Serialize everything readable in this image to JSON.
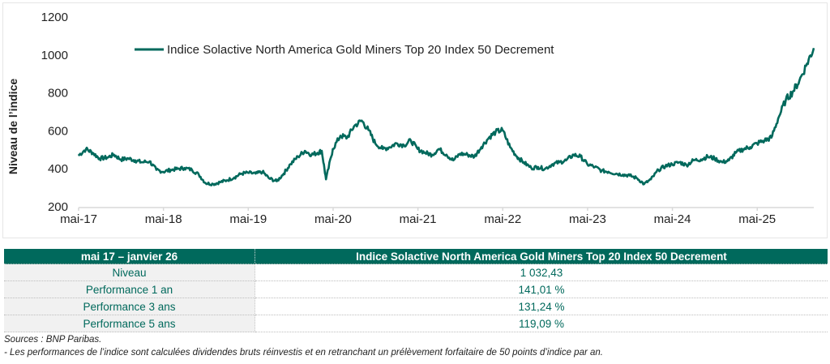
{
  "chart_data": {
    "type": "line",
    "title": "",
    "xlabel": "",
    "ylabel": "Niveau de l’indice",
    "ylim": [
      200,
      1200
    ],
    "yticks": [
      200,
      400,
      600,
      800,
      1000,
      1200
    ],
    "xlim": [
      "2017-05",
      "2026-01"
    ],
    "xticks": [
      "mai-17",
      "mai-18",
      "mai-19",
      "mai-20",
      "mai-21",
      "mai-22",
      "mai-23",
      "mai-24",
      "mai-25"
    ],
    "grid": false,
    "legend": {
      "position": "top-center",
      "entries": [
        "Indice Solactive North America Gold Miners Top 20 Index 50 Decrement"
      ]
    },
    "series_color": "#00695c",
    "series": [
      {
        "name": "Indice Solactive North America Gold Miners Top 20 Index 50 Decrement",
        "x_years": [
          2017.33,
          2017.42,
          2017.5,
          2017.58,
          2017.67,
          2017.75,
          2017.83,
          2017.92,
          2018.0,
          2018.08,
          2018.17,
          2018.25,
          2018.33,
          2018.42,
          2018.5,
          2018.58,
          2018.67,
          2018.75,
          2018.83,
          2018.92,
          2019.0,
          2019.08,
          2019.17,
          2019.25,
          2019.33,
          2019.42,
          2019.5,
          2019.58,
          2019.67,
          2019.75,
          2019.83,
          2019.92,
          2020.0,
          2020.08,
          2020.15,
          2020.2,
          2020.25,
          2020.33,
          2020.42,
          2020.5,
          2020.58,
          2020.67,
          2020.75,
          2020.83,
          2020.92,
          2021.0,
          2021.08,
          2021.17,
          2021.25,
          2021.33,
          2021.42,
          2021.5,
          2021.58,
          2021.67,
          2021.75,
          2021.83,
          2021.92,
          2022.0,
          2022.08,
          2022.17,
          2022.25,
          2022.33,
          2022.42,
          2022.5,
          2022.58,
          2022.67,
          2022.75,
          2022.83,
          2022.92,
          2023.0,
          2023.08,
          2023.17,
          2023.25,
          2023.33,
          2023.42,
          2023.5,
          2023.58,
          2023.67,
          2023.75,
          2023.83,
          2023.92,
          2024.0,
          2024.08,
          2024.17,
          2024.25,
          2024.33,
          2024.42,
          2024.5,
          2024.58,
          2024.67,
          2024.75,
          2024.83,
          2024.92,
          2025.0,
          2025.08,
          2025.17,
          2025.25,
          2025.33,
          2025.42,
          2025.5,
          2025.58,
          2025.67,
          2025.75,
          2025.83,
          2025.92,
          2026.0
        ],
        "values": [
          465,
          500,
          480,
          450,
          455,
          470,
          445,
          450,
          440,
          430,
          435,
          390,
          380,
          390,
          395,
          400,
          390,
          365,
          320,
          315,
          325,
          335,
          350,
          370,
          375,
          370,
          380,
          345,
          330,
          370,
          420,
          460,
          490,
          470,
          480,
          490,
          340,
          500,
          570,
          560,
          620,
          650,
          600,
          530,
          500,
          510,
          530,
          520,
          545,
          500,
          480,
          470,
          500,
          470,
          440,
          475,
          470,
          460,
          510,
          560,
          590,
          600,
          510,
          460,
          430,
          400,
          405,
          395,
          420,
          430,
          440,
          470,
          460,
          420,
          405,
          385,
          380,
          370,
          365,
          360,
          345,
          315,
          340,
          390,
          410,
          420,
          430,
          415,
          440,
          445,
          460,
          450,
          430,
          440,
          480,
          500,
          510,
          530,
          545,
          560,
          660,
          760,
          800,
          860,
          950,
          1032
        ]
      }
    ]
  },
  "table": {
    "headers": [
      "mai 17 – janvier 26",
      "Indice Solactive North America Gold Miners Top 20 Index 50 Decrement"
    ],
    "rows": [
      {
        "label": "Niveau",
        "value": "1 032,43"
      },
      {
        "label": "Performance 1 an",
        "value": "141,01 %"
      },
      {
        "label": "Performance 3 ans",
        "value": "131,24 %"
      },
      {
        "label": "Performance 5 ans",
        "value": "119,09 %"
      }
    ]
  },
  "footnotes": {
    "sources": "Sources : BNP Paribas.",
    "note": "- Les performances de l’indice sont calculées dividendes bruts réinvestis et en retranchant un prélèvement forfaitaire de 50 points d’indice par an."
  }
}
